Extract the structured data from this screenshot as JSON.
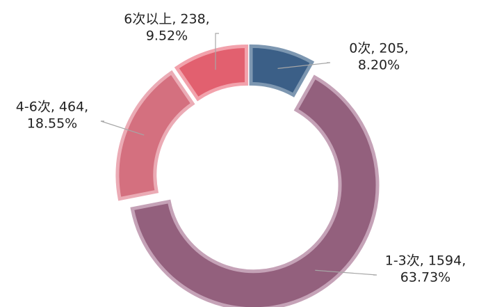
{
  "chart_data": {
    "type": "pie",
    "values": [
      205,
      1594,
      464,
      238
    ],
    "value_labels": [
      [
        "0次, 205,",
        "8.20%"
      ],
      [
        "1-3次, 1594,",
        "63.73%"
      ],
      [
        "4-6次, 464,",
        "18.55%"
      ],
      [
        "6次以上, 238,",
        "9.52%"
      ]
    ],
    "colors": [
      "#3b5f87",
      "#93607d",
      "#d4707f",
      "#e2606f"
    ],
    "edge_colors": [
      "#7d97b1",
      "#c5a2b7",
      "#ebabb5",
      "#f2a2ac"
    ]
  }
}
